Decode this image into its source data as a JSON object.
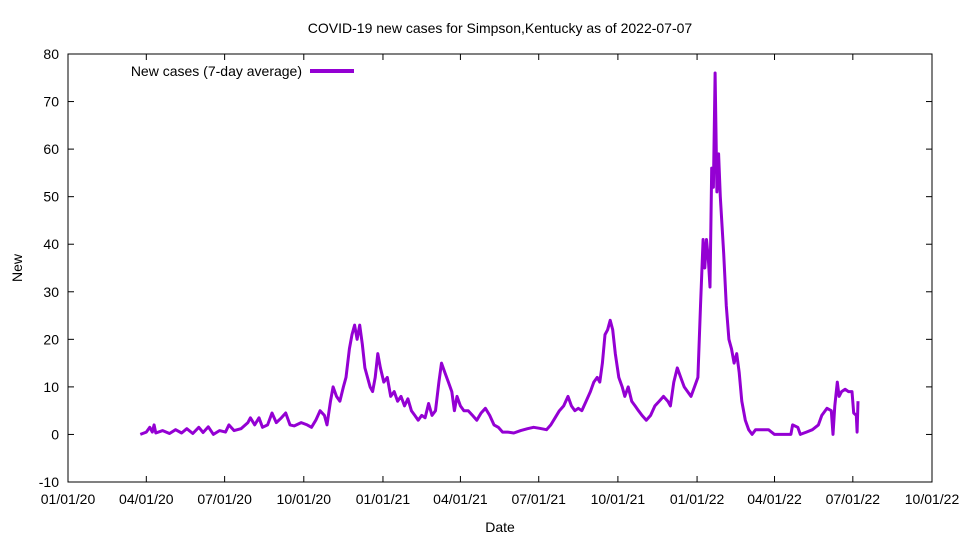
{
  "chart_data": {
    "type": "line",
    "title": "COVID-19 new cases for Simpson,Kentucky as of 2022-07-07",
    "xlabel": "Date",
    "ylabel": "New",
    "xlim": [
      "2020-01-01",
      "2022-10-01"
    ],
    "ylim": [
      -10,
      80
    ],
    "x_ticks": [
      "01/01/20",
      "04/01/20",
      "07/01/20",
      "10/01/20",
      "01/01/21",
      "04/01/21",
      "07/01/21",
      "10/01/21",
      "01/01/22",
      "04/01/22",
      "07/01/22",
      "10/01/22"
    ],
    "x_tick_dates": [
      "2020-01-01",
      "2020-04-01",
      "2020-07-01",
      "2020-10-01",
      "2021-01-01",
      "2021-04-01",
      "2021-07-01",
      "2021-10-01",
      "2022-01-01",
      "2022-04-01",
      "2022-07-01",
      "2022-10-01"
    ],
    "y_ticks": [
      -10,
      0,
      10,
      20,
      30,
      40,
      50,
      60,
      70,
      80
    ],
    "grid": false,
    "legend": {
      "position": "top-left"
    },
    "series": [
      {
        "name": "New cases (7-day average)",
        "color": "#9400d3",
        "points": [
          [
            "2020-03-25",
            0
          ],
          [
            "2020-04-01",
            0.5
          ],
          [
            "2020-04-05",
            1.5
          ],
          [
            "2020-04-08",
            0.5
          ],
          [
            "2020-04-10",
            2.0
          ],
          [
            "2020-04-12",
            0.3
          ],
          [
            "2020-04-20",
            0.8
          ],
          [
            "2020-04-28",
            0.2
          ],
          [
            "2020-05-05",
            1.0
          ],
          [
            "2020-05-12",
            0.3
          ],
          [
            "2020-05-18",
            1.2
          ],
          [
            "2020-05-25",
            0.2
          ],
          [
            "2020-06-01",
            1.5
          ],
          [
            "2020-06-06",
            0.4
          ],
          [
            "2020-06-12",
            1.6
          ],
          [
            "2020-06-18",
            0.0
          ],
          [
            "2020-06-25",
            0.8
          ],
          [
            "2020-07-02",
            0.5
          ],
          [
            "2020-07-06",
            2.0
          ],
          [
            "2020-07-12",
            0.8
          ],
          [
            "2020-07-20",
            1.2
          ],
          [
            "2020-07-28",
            2.5
          ],
          [
            "2020-07-31",
            3.5
          ],
          [
            "2020-08-05",
            2.0
          ],
          [
            "2020-08-10",
            3.5
          ],
          [
            "2020-08-14",
            1.5
          ],
          [
            "2020-08-20",
            2.0
          ],
          [
            "2020-08-25",
            4.5
          ],
          [
            "2020-08-30",
            2.5
          ],
          [
            "2020-09-05",
            3.5
          ],
          [
            "2020-09-10",
            4.5
          ],
          [
            "2020-09-15",
            2.0
          ],
          [
            "2020-09-20",
            1.8
          ],
          [
            "2020-09-28",
            2.5
          ],
          [
            "2020-10-05",
            2.0
          ],
          [
            "2020-10-10",
            1.5
          ],
          [
            "2020-10-15",
            3.0
          ],
          [
            "2020-10-20",
            5.0
          ],
          [
            "2020-10-25",
            4.0
          ],
          [
            "2020-10-28",
            2.0
          ],
          [
            "2020-11-01",
            7.0
          ],
          [
            "2020-11-04",
            10.0
          ],
          [
            "2020-11-08",
            8.0
          ],
          [
            "2020-11-12",
            7.0
          ],
          [
            "2020-11-16",
            10.0
          ],
          [
            "2020-11-19",
            12.0
          ],
          [
            "2020-11-23",
            18.0
          ],
          [
            "2020-11-26",
            21.0
          ],
          [
            "2020-11-29",
            23.0
          ],
          [
            "2020-12-02",
            20.0
          ],
          [
            "2020-12-05",
            23.0
          ],
          [
            "2020-12-08",
            19.0
          ],
          [
            "2020-12-11",
            14.0
          ],
          [
            "2020-12-14",
            12.0
          ],
          [
            "2020-12-17",
            10.0
          ],
          [
            "2020-12-20",
            9.0
          ],
          [
            "2020-12-23",
            12.0
          ],
          [
            "2020-12-26",
            17.0
          ],
          [
            "2020-12-29",
            14.0
          ],
          [
            "2021-01-02",
            11.0
          ],
          [
            "2021-01-06",
            12.0
          ],
          [
            "2021-01-10",
            8.0
          ],
          [
            "2021-01-14",
            9.0
          ],
          [
            "2021-01-18",
            7.0
          ],
          [
            "2021-01-22",
            8.0
          ],
          [
            "2021-01-26",
            6.0
          ],
          [
            "2021-01-30",
            7.5
          ],
          [
            "2021-02-03",
            5.0
          ],
          [
            "2021-02-07",
            4.0
          ],
          [
            "2021-02-11",
            3.0
          ],
          [
            "2021-02-15",
            4.0
          ],
          [
            "2021-02-19",
            3.5
          ],
          [
            "2021-02-23",
            6.5
          ],
          [
            "2021-02-27",
            4.0
          ],
          [
            "2021-03-03",
            5.0
          ],
          [
            "2021-03-07",
            11.0
          ],
          [
            "2021-03-10",
            15.0
          ],
          [
            "2021-03-14",
            13.0
          ],
          [
            "2021-03-18",
            11.0
          ],
          [
            "2021-03-22",
            9.0
          ],
          [
            "2021-03-25",
            5.0
          ],
          [
            "2021-03-28",
            8.0
          ],
          [
            "2021-04-01",
            6.0
          ],
          [
            "2021-04-05",
            5.0
          ],
          [
            "2021-04-10",
            5.0
          ],
          [
            "2021-04-15",
            4.0
          ],
          [
            "2021-04-20",
            3.0
          ],
          [
            "2021-04-25",
            4.5
          ],
          [
            "2021-04-30",
            5.5
          ],
          [
            "2021-05-05",
            4.0
          ],
          [
            "2021-05-10",
            2.0
          ],
          [
            "2021-05-15",
            1.5
          ],
          [
            "2021-05-20",
            0.5
          ],
          [
            "2021-05-26",
            0.5
          ],
          [
            "2021-06-02",
            0.3
          ],
          [
            "2021-06-10",
            0.8
          ],
          [
            "2021-06-18",
            1.2
          ],
          [
            "2021-06-25",
            1.5
          ],
          [
            "2021-07-02",
            1.3
          ],
          [
            "2021-07-10",
            1.0
          ],
          [
            "2021-07-15",
            2.0
          ],
          [
            "2021-07-20",
            3.5
          ],
          [
            "2021-07-25",
            5.0
          ],
          [
            "2021-07-30",
            6.0
          ],
          [
            "2021-08-04",
            8.0
          ],
          [
            "2021-08-08",
            6.0
          ],
          [
            "2021-08-12",
            5.0
          ],
          [
            "2021-08-16",
            5.5
          ],
          [
            "2021-08-20",
            5.0
          ],
          [
            "2021-08-25",
            7.0
          ],
          [
            "2021-08-30",
            9.0
          ],
          [
            "2021-09-03",
            11.0
          ],
          [
            "2021-09-07",
            12.0
          ],
          [
            "2021-09-10",
            11.0
          ],
          [
            "2021-09-13",
            15.0
          ],
          [
            "2021-09-16",
            21.0
          ],
          [
            "2021-09-19",
            22.0
          ],
          [
            "2021-09-22",
            24.0
          ],
          [
            "2021-09-25",
            22.0
          ],
          [
            "2021-09-28",
            17.0
          ],
          [
            "2021-10-02",
            12.0
          ],
          [
            "2021-10-06",
            10.0
          ],
          [
            "2021-10-09",
            8.0
          ],
          [
            "2021-10-13",
            10.0
          ],
          [
            "2021-10-17",
            7.0
          ],
          [
            "2021-10-21",
            6.0
          ],
          [
            "2021-10-25",
            5.0
          ],
          [
            "2021-10-29",
            4.0
          ],
          [
            "2021-11-03",
            3.0
          ],
          [
            "2021-11-08",
            4.0
          ],
          [
            "2021-11-13",
            6.0
          ],
          [
            "2021-11-18",
            7.0
          ],
          [
            "2021-11-23",
            8.0
          ],
          [
            "2021-11-28",
            7.0
          ],
          [
            "2021-12-01",
            6.0
          ],
          [
            "2021-12-05",
            11.0
          ],
          [
            "2021-12-09",
            14.0
          ],
          [
            "2021-12-13",
            12.0
          ],
          [
            "2021-12-17",
            10.0
          ],
          [
            "2021-12-21",
            9.0
          ],
          [
            "2021-12-25",
            8.0
          ],
          [
            "2021-12-29",
            10.0
          ],
          [
            "2022-01-02",
            12.0
          ],
          [
            "2022-01-05",
            27.0
          ],
          [
            "2022-01-08",
            41.0
          ],
          [
            "2022-01-10",
            35.0
          ],
          [
            "2022-01-12",
            41.0
          ],
          [
            "2022-01-14",
            37.0
          ],
          [
            "2022-01-16",
            31.0
          ],
          [
            "2022-01-18",
            56.0
          ],
          [
            "2022-01-20",
            52.0
          ],
          [
            "2022-01-22",
            76.0
          ],
          [
            "2022-01-24",
            51.0
          ],
          [
            "2022-01-26",
            59.0
          ],
          [
            "2022-01-28",
            50.0
          ],
          [
            "2022-02-01",
            38.0
          ],
          [
            "2022-02-04",
            27.0
          ],
          [
            "2022-02-07",
            20.0
          ],
          [
            "2022-02-10",
            18.0
          ],
          [
            "2022-02-13",
            15.0
          ],
          [
            "2022-02-16",
            17.0
          ],
          [
            "2022-02-19",
            13.0
          ],
          [
            "2022-02-22",
            7.0
          ],
          [
            "2022-02-26",
            3.0
          ],
          [
            "2022-03-02",
            1.0
          ],
          [
            "2022-03-06",
            0.0
          ],
          [
            "2022-03-10",
            1.0
          ],
          [
            "2022-03-18",
            1.0
          ],
          [
            "2022-03-25",
            1.0
          ],
          [
            "2022-04-01",
            0.0
          ],
          [
            "2022-04-10",
            0.0
          ],
          [
            "2022-04-20",
            0.0
          ],
          [
            "2022-04-22",
            2.0
          ],
          [
            "2022-04-28",
            1.5
          ],
          [
            "2022-05-01",
            0.0
          ],
          [
            "2022-05-08",
            0.5
          ],
          [
            "2022-05-15",
            1.0
          ],
          [
            "2022-05-22",
            2.0
          ],
          [
            "2022-05-26",
            4.0
          ],
          [
            "2022-06-01",
            5.5
          ],
          [
            "2022-06-06",
            5.0
          ],
          [
            "2022-06-08",
            0.0
          ],
          [
            "2022-06-10",
            6.0
          ],
          [
            "2022-06-13",
            11.0
          ],
          [
            "2022-06-15",
            8.0
          ],
          [
            "2022-06-18",
            9.0
          ],
          [
            "2022-06-22",
            9.5
          ],
          [
            "2022-06-26",
            9.0
          ],
          [
            "2022-06-30",
            9.0
          ],
          [
            "2022-07-02",
            4.5
          ],
          [
            "2022-07-05",
            4.0
          ],
          [
            "2022-07-06",
            0.5
          ],
          [
            "2022-07-07",
            7.0
          ]
        ]
      }
    ]
  }
}
